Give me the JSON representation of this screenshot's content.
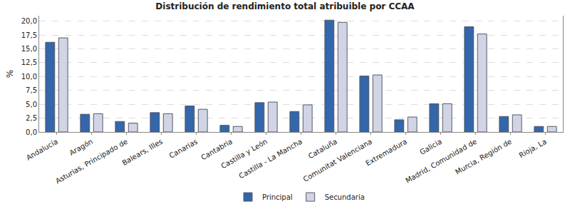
{
  "chart_data": {
    "type": "bar",
    "title": "Distribución de rendimiento total atribuible por CCAA",
    "y_label": "%",
    "categories": [
      "Andalucía",
      "Aragón",
      "Asturias, Principado de",
      "Balears, Illes",
      "Canarias",
      "Cantabria",
      "Castilla y León",
      "Castilla - La Mancha",
      "Cataluña",
      "Comunitat Valenciana",
      "Extremadura",
      "Galicia",
      "Madrid, Comunidad de",
      "Murcia, Región de",
      "Rioja, La"
    ],
    "series": [
      {
        "name": "Principal",
        "color": "#3366aa",
        "values": [
          16.2,
          3.2,
          1.9,
          3.5,
          4.7,
          1.2,
          5.3,
          3.7,
          20.2,
          10.1,
          2.2,
          5.1,
          19.0,
          2.8,
          1.0
        ]
      },
      {
        "name": "Secundaria",
        "color": "#d0d4e4",
        "values": [
          17.0,
          3.3,
          1.6,
          3.3,
          4.1,
          1.0,
          5.4,
          4.9,
          19.8,
          10.3,
          2.7,
          5.1,
          17.7,
          3.1,
          1.0
        ]
      }
    ],
    "ylim": [
      0,
      21
    ],
    "yticks": [
      {
        "value": 0,
        "label": "0,0"
      },
      {
        "value": 2.5,
        "label": "2,5"
      },
      {
        "value": 5,
        "label": "5,0"
      },
      {
        "value": 7.5,
        "label": "7,5"
      },
      {
        "value": 10,
        "label": "10,0"
      },
      {
        "value": 12.5,
        "label": "12,5"
      },
      {
        "value": 15,
        "label": "15,0"
      },
      {
        "value": 17.5,
        "label": "17,5"
      },
      {
        "value": 20,
        "label": "20,0"
      }
    ],
    "grid": true,
    "legend": "bottom"
  }
}
